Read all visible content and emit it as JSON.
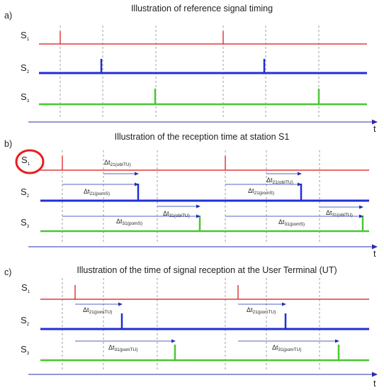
{
  "colors": {
    "s1": "#e03a3a",
    "s2": "#1f2fd6",
    "s3": "#49c733",
    "time_axis": "#2b2bb0",
    "arrow": "#1f2fb0",
    "guide": "#777777",
    "highlight": "#e81e1e"
  },
  "panels": [
    {
      "label": "a)",
      "title": "Illustration of reference signal timing",
      "axis_label": "t",
      "signals": [
        {
          "label": "S",
          "sub": "1"
        },
        {
          "label": "S",
          "sub": "2"
        },
        {
          "label": "S",
          "sub": "3"
        }
      ]
    },
    {
      "label": "b)",
      "title": "Illustration of the reception time at station S1",
      "axis_label": "t",
      "signals": [
        {
          "label": "S",
          "sub": "1"
        },
        {
          "label": "S",
          "sub": "2"
        },
        {
          "label": "S",
          "sub": "3"
        }
      ],
      "annotations": [
        {
          "text": "Δt",
          "sub": "21(obITU)"
        },
        {
          "text": "Δt",
          "sub": "21(pomS)"
        },
        {
          "text": "Δt",
          "sub": "31(obITU)"
        },
        {
          "text": "Δt",
          "sub": "31(pomS)"
        },
        {
          "text": "Δt",
          "sub": "21(obITU)"
        },
        {
          "text": "Δt",
          "sub": "21(pomS)"
        },
        {
          "text": "Δt",
          "sub": "31(obITU)"
        },
        {
          "text": "Δt",
          "sub": "31(pomS)"
        }
      ]
    },
    {
      "label": "c)",
      "title": "Illustration of the time of signal reception at the User Terminal (UT)",
      "axis_label": "t",
      "signals": [
        {
          "label": "S",
          "sub": "1"
        },
        {
          "label": "S",
          "sub": "2"
        },
        {
          "label": "S",
          "sub": "3"
        }
      ],
      "annotations": [
        {
          "text": "Δt",
          "sub": "21(pomTU)"
        },
        {
          "text": "Δt",
          "sub": "31(pomTU)"
        },
        {
          "text": "Δt",
          "sub": "21(pomTU)"
        },
        {
          "text": "Δt",
          "sub": "31(pomTU)"
        }
      ]
    }
  ]
}
